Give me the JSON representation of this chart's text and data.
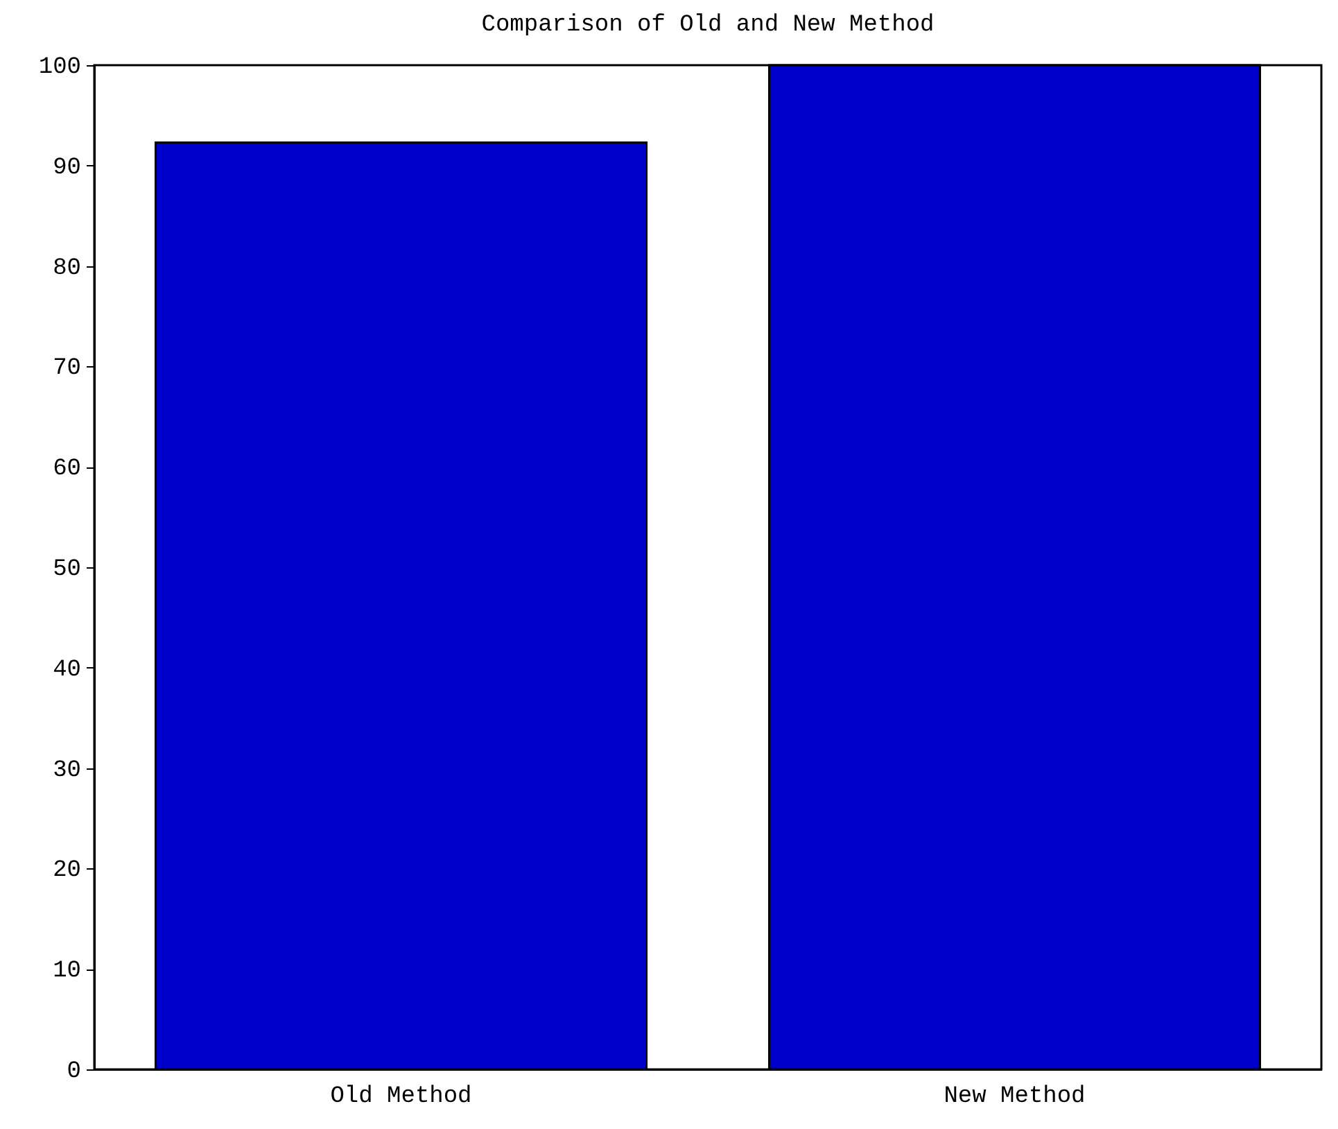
{
  "chart_data": {
    "type": "bar",
    "title": "Comparison of Old and New Method",
    "categories": [
      "Old Method",
      "New Method"
    ],
    "values": [
      92.3,
      100
    ],
    "color": "#0000cc",
    "ylim": [
      0,
      100
    ],
    "yticks": [
      0,
      10,
      20,
      30,
      40,
      50,
      60,
      70,
      80,
      90,
      100
    ],
    "grid": false
  }
}
